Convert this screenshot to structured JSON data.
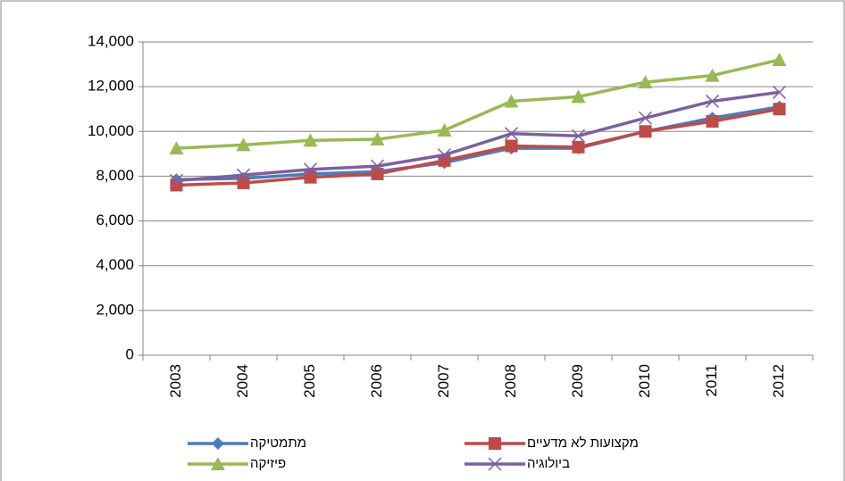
{
  "chart_data": {
    "type": "line",
    "categories": [
      "2003",
      "2004",
      "2005",
      "2006",
      "2007",
      "2008",
      "2009",
      "2010",
      "2011",
      "2012"
    ],
    "series": [
      {
        "name": "מתמטיקה",
        "color": "#4a7ebb",
        "marker": "diamond",
        "values": [
          7850,
          7900,
          8100,
          8200,
          8600,
          9250,
          9250,
          10000,
          10600,
          11100
        ]
      },
      {
        "name": "מקצועות לא מדעיים",
        "color": "#be4b48",
        "marker": "square",
        "values": [
          7600,
          7700,
          7950,
          8100,
          8700,
          9350,
          9300,
          10000,
          10450,
          11000
        ]
      },
      {
        "name": "פיזיקה",
        "color": "#98b954",
        "marker": "triangle",
        "values": [
          9250,
          9400,
          9600,
          9650,
          10050,
          11350,
          11550,
          12200,
          12500,
          13200
        ]
      },
      {
        "name": "ביולוגיה",
        "color": "#7d60a0",
        "marker": "x",
        "values": [
          7800,
          8050,
          8300,
          8450,
          8950,
          9900,
          9800,
          10600,
          11350,
          11750
        ]
      }
    ],
    "ylim": [
      0,
      14000
    ],
    "yticks": [
      {
        "value": 0,
        "label": "0"
      },
      {
        "value": 2000,
        "label": "2,000"
      },
      {
        "value": 4000,
        "label": "4,000"
      },
      {
        "value": 6000,
        "label": "6,000"
      },
      {
        "value": 8000,
        "label": "8,000"
      },
      {
        "value": 10000,
        "label": "10,000"
      },
      {
        "value": 12000,
        "label": "12,000"
      },
      {
        "value": 14000,
        "label": "14,000"
      }
    ],
    "grid": true,
    "legend": "bottom"
  }
}
